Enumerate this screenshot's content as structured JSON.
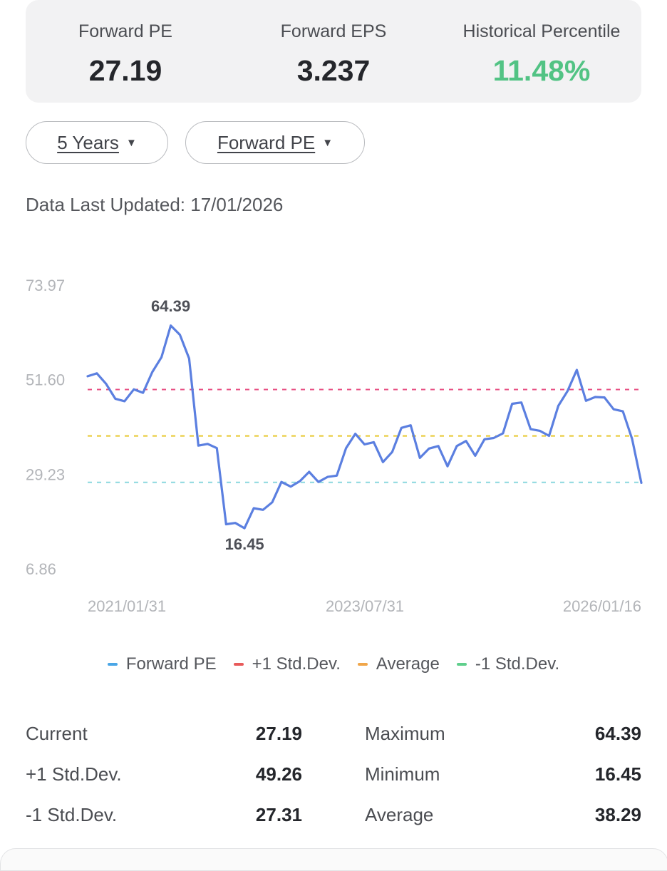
{
  "summary": {
    "forward_pe_label": "Forward PE",
    "forward_pe_value": "27.19",
    "forward_eps_label": "Forward EPS",
    "forward_eps_value": "3.237",
    "percentile_label": "Historical Percentile",
    "percentile_value": "11.48%",
    "percentile_color": "#52c384"
  },
  "controls": {
    "period_label": "5 Years",
    "metric_label": "Forward PE"
  },
  "updated_text": "Data Last Updated: 17/01/2026",
  "chart_data": {
    "type": "line",
    "y_ticks": [
      "73.97",
      "51.60",
      "29.23",
      "6.86"
    ],
    "ylim": [
      6.86,
      73.97
    ],
    "x_ticks": [
      "2021/01/31",
      "2023/07/31",
      "2026/01/16"
    ],
    "grid": false,
    "legend_position": "bottom",
    "series": [
      {
        "name": "Forward PE",
        "color": "#5b7fe0",
        "legend_color": "#4aa6e6",
        "values": [
          52.4,
          53.1,
          50.6,
          47.1,
          46.5,
          49.3,
          48.5,
          53.4,
          56.9,
          64.4,
          62.2,
          56.6,
          36.0,
          36.4,
          35.4,
          17.4,
          17.7,
          16.45,
          21.2,
          20.8,
          22.6,
          27.4,
          26.3,
          27.6,
          29.8,
          27.4,
          28.6,
          28.9,
          35.4,
          38.8,
          36.3,
          36.8,
          32.1,
          34.5,
          40.2,
          40.8,
          33.1,
          35.3,
          35.9,
          31.1,
          35.9,
          37.1,
          33.6,
          37.5,
          37.8,
          38.9,
          45.9,
          46.2,
          39.9,
          39.5,
          38.3,
          45.4,
          48.9,
          53.9,
          46.6,
          47.5,
          47.4,
          44.6,
          44.1,
          37.6,
          27.19
        ]
      },
      {
        "name": "+1 Std.Dev.",
        "color": "#e84f83",
        "legend_color": "#e85a5a",
        "values": [
          49.26
        ]
      },
      {
        "name": "Average",
        "color": "#e8c72e",
        "legend_color": "#f0a64a",
        "values": [
          38.29
        ]
      },
      {
        "name": "-1 Std.Dev.",
        "color": "#8ad8de",
        "legend_color": "#5fcf8c",
        "values": [
          27.31
        ]
      }
    ],
    "annotations": [
      {
        "label": "64.39",
        "value": 64.39,
        "index": 9
      },
      {
        "label": "16.45",
        "value": 16.45,
        "index": 17
      }
    ]
  },
  "stats": [
    {
      "label": "Current",
      "value": "27.19",
      "label2": "Maximum",
      "value2": "64.39"
    },
    {
      "label": "+1 Std.Dev.",
      "value": "49.26",
      "label2": "Minimum",
      "value2": "16.45"
    },
    {
      "label": "-1 Std.Dev.",
      "value": "27.31",
      "label2": "Average",
      "value2": "38.29"
    }
  ]
}
